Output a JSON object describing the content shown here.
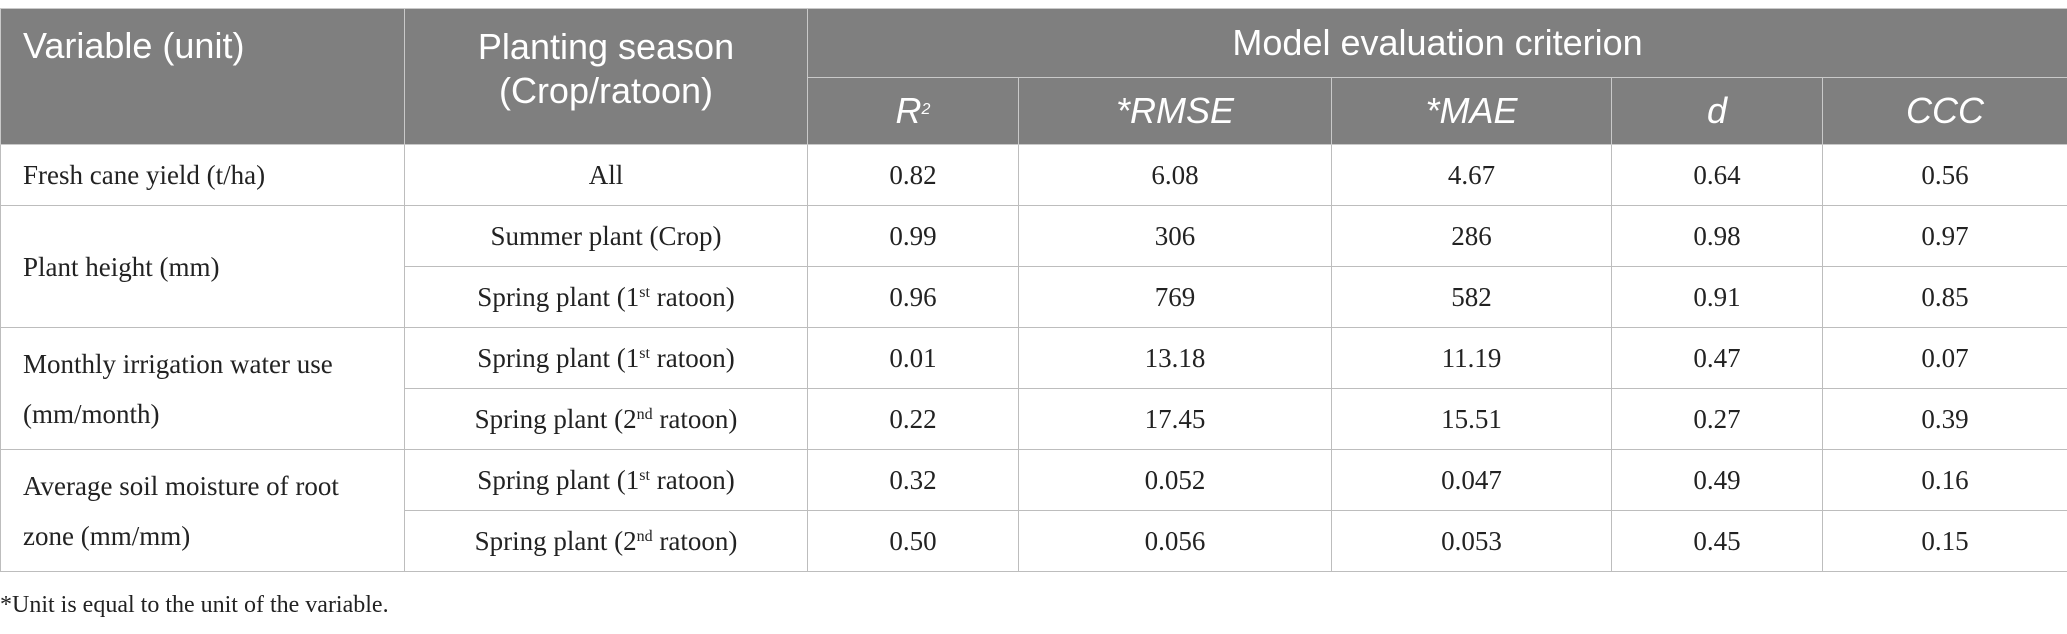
{
  "header": {
    "variable": "Variable (unit)",
    "season_line1": "Planting season",
    "season_line2": "(Crop/ratoon)",
    "group": "Model evaluation criterion",
    "metrics": {
      "r2_base": "R",
      "r2_sup": "2",
      "rmse": "*RMSE",
      "mae": "*MAE",
      "d": "d",
      "ccc": "CCC"
    }
  },
  "variables": {
    "yield": "Fresh cane yield (t/ha)",
    "height": "Plant height (mm)",
    "irrigation_line1": "Monthly irrigation water use",
    "irrigation_line2": "(mm/month)",
    "moisture_line1": "Average soil moisture of root",
    "moisture_line2": "zone (mm/mm)"
  },
  "rows": [
    {
      "season": "All",
      "r2": "0.82",
      "rmse": "6.08",
      "mae": "4.67",
      "d": "0.64",
      "ccc": "0.56"
    },
    {
      "season": "Summer plant (Crop)",
      "r2": "0.99",
      "rmse": "306",
      "mae": "286",
      "d": "0.98",
      "ccc": "0.97"
    },
    {
      "season_pre": "Spring plant (1",
      "season_sup": "st",
      "season_post": " ratoon)",
      "r2": "0.96",
      "rmse": "769",
      "mae": "582",
      "d": "0.91",
      "ccc": "0.85"
    },
    {
      "season_pre": "Spring plant (1",
      "season_sup": "st",
      "season_post": " ratoon)",
      "r2": "0.01",
      "rmse": "13.18",
      "mae": "11.19",
      "d": "0.47",
      "ccc": "0.07"
    },
    {
      "season_pre": "Spring plant (2",
      "season_sup": "nd",
      "season_post": " ratoon)",
      "r2": "0.22",
      "rmse": "17.45",
      "mae": "15.51",
      "d": "0.27",
      "ccc": "0.39"
    },
    {
      "season_pre": "Spring plant (1",
      "season_sup": "st",
      "season_post": " ratoon)",
      "r2": "0.32",
      "rmse": "0.052",
      "mae": "0.047",
      "d": "0.49",
      "ccc": "0.16"
    },
    {
      "season_pre": "Spring plant (2",
      "season_sup": "nd",
      "season_post": " ratoon)",
      "r2": "0.50",
      "rmse": "0.056",
      "mae": "0.053",
      "d": "0.45",
      "ccc": "0.15"
    }
  ],
  "footnote": "*Unit is equal to the unit of the variable."
}
